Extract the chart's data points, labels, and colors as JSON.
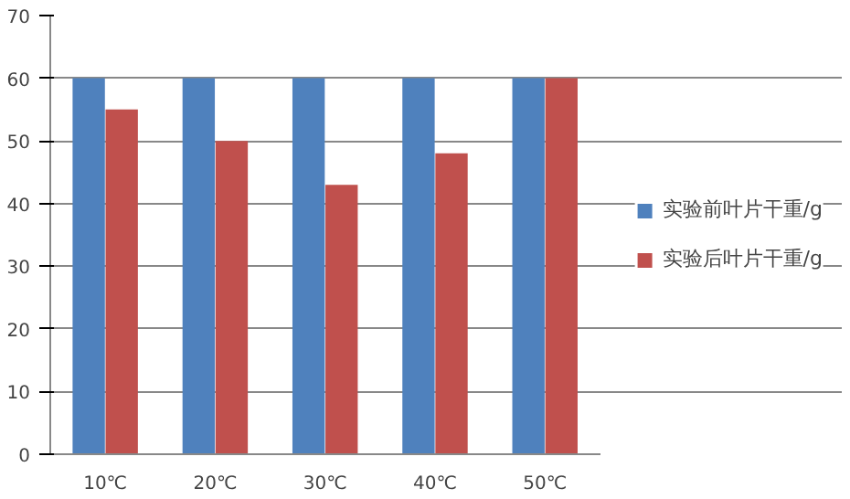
{
  "chart_data": {
    "type": "bar",
    "categories": [
      "10℃",
      "20℃",
      "30℃",
      "40℃",
      "50℃"
    ],
    "series": [
      {
        "name": "实验前叶片干重/g",
        "color": "#4f81bd",
        "values": [
          60,
          60,
          60,
          60,
          60
        ]
      },
      {
        "name": "实验后叶片干重/g",
        "color": "#c0504d",
        "values": [
          55,
          50,
          43,
          48,
          60
        ]
      }
    ],
    "ylim": [
      0,
      70
    ],
    "yticks": [
      0,
      10,
      20,
      30,
      40,
      50,
      60,
      70
    ],
    "grid": "y",
    "legend": "right"
  }
}
